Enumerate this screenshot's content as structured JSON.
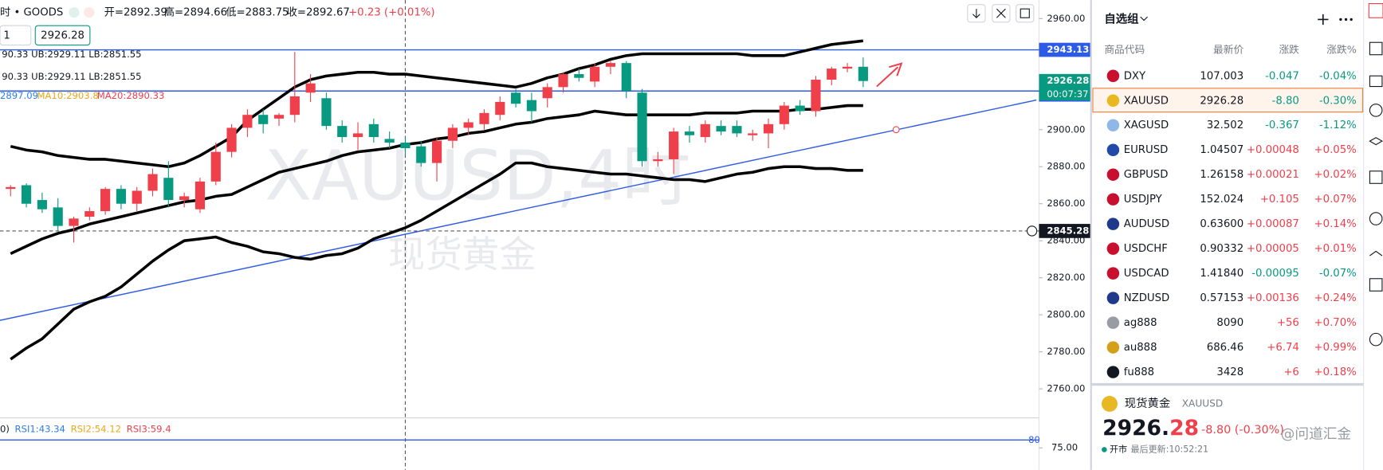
{
  "header": {
    "symbol": "时 • GOODS",
    "ohlc": [
      "开=2892.39",
      "高=2894.66",
      "低=2883.75",
      "收=2892.67"
    ],
    "change": "+0.23 (+0.01%)",
    "input": "1",
    "price_box": "2926.28"
  },
  "indicators": {
    "bb": [
      "90.33  UB:2929.11  LB:2851.55",
      "90.33  UB:2929.11  LB:2851.55"
    ],
    "ma": [
      "2897.09",
      "MA10:2903.8",
      "MA20:2890.33"
    ]
  },
  "chart_data": {
    "type": "candlestick",
    "watermark": "XAUUSD,4时",
    "subtitle": "现货黄金",
    "xlim": [
      -0.67,
      64.97
    ],
    "ylim": [
      2746.2,
      2970
    ],
    "yticks": [
      {
        "value": 2960,
        "label": "2960.00"
      },
      {
        "value": 2900,
        "label": "2900.00"
      },
      {
        "value": 2880,
        "label": "2880.00"
      },
      {
        "value": 2860,
        "label": "2860.00"
      },
      {
        "value": 2840,
        "label": "2840.00"
      },
      {
        "value": 2820,
        "label": "2820.00"
      },
      {
        "value": 2800,
        "label": "2800.00"
      },
      {
        "value": 2780,
        "label": "2780.00"
      },
      {
        "value": 2760,
        "label": "2760.00"
      }
    ],
    "up_color": "#ef3f4b",
    "down_color": "#089981",
    "open": [
      2868,
      2870,
      2862,
      2858,
      2848,
      2853,
      2856,
      2868,
      2860,
      2867,
      2874,
      2862,
      2857,
      2872,
      2888,
      2901,
      2908,
      2906,
      2908,
      2920,
      2917,
      2902,
      2896,
      2903,
      2895,
      2893,
      2891,
      2882,
      2894,
      2901,
      2903,
      2908,
      2920,
      2916,
      2917,
      2923,
      2930,
      2926,
      2934,
      2936,
      2920,
      2883,
      2884,
      2899,
      2896,
      2902,
      2902,
      2897,
      2898,
      2903,
      2913,
      2910,
      2927,
      2933,
      2934
    ],
    "high": [
      2870,
      2871,
      2866,
      2863,
      2853,
      2858,
      2869,
      2870,
      2869,
      2879,
      2883,
      2866,
      2874,
      2893,
      2903,
      2911,
      2911,
      2909,
      2942,
      2930,
      2920,
      2905,
      2904,
      2906,
      2899,
      2896,
      2894,
      2896,
      2903,
      2906,
      2911,
      2918,
      2922,
      2920,
      2925,
      2931,
      2933,
      2936,
      2937,
      2937,
      2922,
      2888,
      2901,
      2902,
      2905,
      2905,
      2905,
      2900,
      2906,
      2915,
      2916,
      2929,
      2934,
      2936,
      2939
    ],
    "low": [
      2864,
      2858,
      2855,
      2845,
      2839,
      2851,
      2854,
      2857,
      2856,
      2864,
      2858,
      2858,
      2855,
      2870,
      2885,
      2896,
      2898,
      2902,
      2904,
      2915,
      2900,
      2893,
      2889,
      2893,
      2890,
      2886,
      2880,
      2872,
      2890,
      2897,
      2900,
      2905,
      2912,
      2904,
      2912,
      2920,
      2926,
      2923,
      2930,
      2917,
      2880,
      2880,
      2876,
      2893,
      2893,
      2897,
      2896,
      2894,
      2890,
      2900,
      2908,
      2907,
      2924,
      2931,
      2923
    ],
    "close": [
      2869,
      2860,
      2857,
      2848,
      2852,
      2856,
      2868,
      2860,
      2867,
      2876,
      2862,
      2864,
      2872,
      2888,
      2901,
      2908,
      2903,
      2908,
      2918,
      2925,
      2902,
      2896,
      2898,
      2896,
      2893,
      2890,
      2882,
      2894,
      2901,
      2904,
      2909,
      2915,
      2914,
      2910,
      2923,
      2930,
      2928,
      2934,
      2936,
      2921,
      2883,
      2884,
      2899,
      2897,
      2903,
      2899,
      2898,
      2898,
      2903,
      2913,
      2910,
      2927,
      2933,
      2934,
      2926.28
    ],
    "bands": {
      "color": "#000000",
      "upper": [
        2891,
        2889,
        2888,
        2886,
        2885,
        2884,
        2884,
        2883,
        2882,
        2881,
        2880,
        2882,
        2886,
        2891,
        2896,
        2905,
        2911,
        2917,
        2923,
        2927,
        2929,
        2930,
        2931,
        2931,
        2930,
        2930,
        2929,
        2928,
        2927,
        2926,
        2925,
        2924,
        2923,
        2925,
        2928,
        2930,
        2933,
        2935,
        2938,
        2940,
        2941,
        2941,
        2941,
        2941,
        2941,
        2941,
        2941,
        2940,
        2940,
        2940,
        2942,
        2944,
        2946,
        2947,
        2948
      ],
      "middle": [
        2833,
        2837,
        2841,
        2844,
        2846,
        2849,
        2851,
        2853,
        2855,
        2857,
        2859,
        2861,
        2862,
        2864,
        2865,
        2869,
        2873,
        2877,
        2879,
        2881,
        2883,
        2886,
        2888,
        2889,
        2890,
        2892,
        2893,
        2895,
        2896,
        2898,
        2899,
        2901,
        2903,
        2904,
        2906,
        2907,
        2908,
        2910,
        2909,
        2908,
        2908,
        2908,
        2908,
        2908,
        2909,
        2909,
        2909,
        2910,
        2910,
        2910,
        2911,
        2911,
        2912,
        2913,
        2913
      ],
      "lower": [
        2776,
        2782,
        2787,
        2795,
        2803,
        2807,
        2810,
        2815,
        2822,
        2829,
        2835,
        2840,
        2841,
        2842,
        2839,
        2837,
        2834,
        2833,
        2831,
        2830,
        2832,
        2833,
        2836,
        2841,
        2844,
        2847,
        2851,
        2856,
        2861,
        2866,
        2871,
        2876,
        2882,
        2882,
        2880,
        2879,
        2878,
        2877,
        2876,
        2876,
        2875,
        2874,
        2873,
        2873,
        2872,
        2874,
        2876,
        2877,
        2879,
        2880,
        2880,
        2879,
        2879,
        2878,
        2878
      ]
    },
    "hlines": [
      2943.13,
      2920.88
    ],
    "hline_color": "#2e5be6",
    "trendline": {
      "x": [
        -0.67,
        64.97
      ],
      "values": [
        2797,
        2916
      ]
    },
    "last_price": 2926.28,
    "countdown": "00:07:37",
    "crosshair": {
      "x": 25,
      "y": 2845.28
    },
    "rsi": {
      "header": [
        "0)",
        "RSI1:43.34",
        "RSI2:54.12",
        "RSI3:59.4"
      ],
      "level": 80,
      "ylim": [
        61.1,
        91.7
      ],
      "yticks": [
        {
          "value": 75,
          "label": "75.00"
        }
      ]
    }
  },
  "watchlist": {
    "title": "自选组",
    "columns": [
      "商品代码",
      "最新价",
      "涨跌",
      "涨跌%"
    ],
    "rows": [
      [
        "DXY",
        "107.003",
        "-0.047",
        "-0.04%"
      ],
      [
        "XAUUSD",
        "2926.28",
        "-8.80",
        "-0.30%"
      ],
      [
        "XAGUSD",
        "32.502",
        "-0.367",
        "-1.12%"
      ],
      [
        "EURUSD",
        "1.04507",
        "+0.00048",
        "+0.05%"
      ],
      [
        "GBPUSD",
        "1.26158",
        "+0.00021",
        "+0.02%"
      ],
      [
        "USDJPY",
        "152.024",
        "+0.105",
        "+0.07%"
      ],
      [
        "AUDUSD",
        "0.63600",
        "+0.00087",
        "+0.14%"
      ],
      [
        "USDCHF",
        "0.90332",
        "+0.00005",
        "+0.01%"
      ],
      [
        "USDCAD",
        "1.41840",
        "-0.00095",
        "-0.07%"
      ],
      [
        "NZDUSD",
        "0.57153",
        "+0.00136",
        "+0.24%"
      ],
      [
        "ag888",
        "8090",
        "+56",
        "+0.70%"
      ],
      [
        "au888",
        "686.46",
        "+6.74",
        "+0.99%"
      ],
      [
        "fu888",
        "3428",
        "+6",
        "+0.18%"
      ]
    ]
  },
  "detail": {
    "name": "现货黄金",
    "symbol": "XAUUSD",
    "price_int": "2926.",
    "price_dec": "28",
    "change": "-8.80 (-0.30%)",
    "status": "开市",
    "updated": "最后更新:10:52:21",
    "watermark": "@问道汇金"
  }
}
